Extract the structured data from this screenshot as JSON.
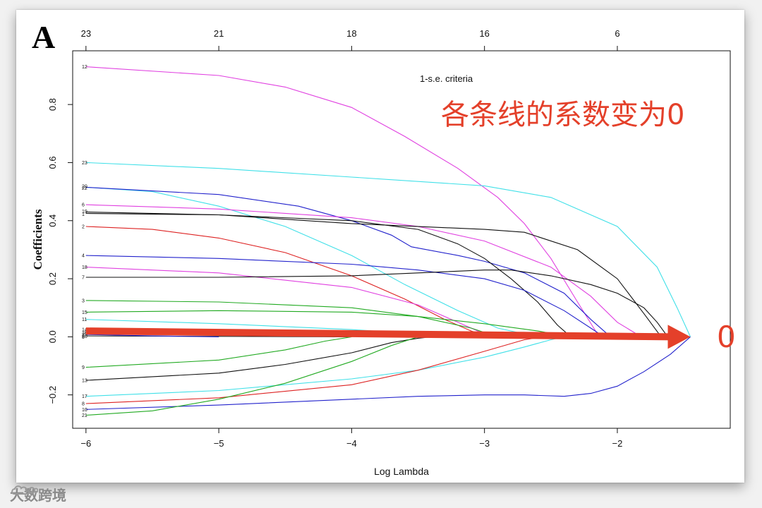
{
  "panel_label": "A",
  "annotation_text": "各条线的系数变为0",
  "arrow_end_label": "0",
  "criteria_label": "1-s.e. criteria",
  "watermark": {
    "text": "大数跨境",
    "icon": "cloud-logo-icon"
  },
  "chart_data": {
    "type": "line",
    "xlabel": "Log Lambda",
    "ylabel": "Coefficients",
    "xlim": [
      -6.1,
      -1.15
    ],
    "ylim": [
      -0.315,
      0.985
    ],
    "x_ticks": [
      -6,
      -5,
      -4,
      -3,
      -2
    ],
    "x_tick_labels": [
      "−6",
      "−5",
      "−4",
      "−3",
      "−2"
    ],
    "y_ticks": [
      -0.2,
      0.0,
      0.2,
      0.4,
      0.6,
      0.8
    ],
    "y_tick_labels": [
      "−0.2",
      "0.0",
      "0.2",
      "0.4",
      "0.6",
      "0.8"
    ],
    "top_axis": {
      "positions": [
        -6,
        -5,
        -4,
        -3,
        -2
      ],
      "labels": [
        "23",
        "21",
        "18",
        "16",
        "6"
      ]
    },
    "grid": false,
    "series": [
      {
        "name": "12",
        "color": "#e040e0",
        "x": [
          -6.0,
          -5.0,
          -4.5,
          -4.0,
          -3.6,
          -3.2,
          -2.9,
          -2.7,
          -2.5,
          -2.3,
          -2.15,
          -2.0
        ],
        "y": [
          0.93,
          0.9,
          0.86,
          0.79,
          0.69,
          0.58,
          0.48,
          0.39,
          0.27,
          0.12,
          0.01,
          0.0
        ]
      },
      {
        "name": "23",
        "color": "#40e0e8",
        "x": [
          -6.0,
          -5.0,
          -4.0,
          -3.0,
          -2.5,
          -2.0,
          -1.7,
          -1.55,
          -1.45
        ],
        "y": [
          0.6,
          0.58,
          0.55,
          0.52,
          0.48,
          0.38,
          0.24,
          0.1,
          0.0
        ]
      },
      {
        "name": "20",
        "color": "#40e0e8",
        "x": [
          -6.0,
          -5.5,
          -5.0,
          -4.5,
          -4.0,
          -3.6,
          -3.2,
          -2.9,
          -2.6
        ],
        "y": [
          0.515,
          0.5,
          0.45,
          0.38,
          0.28,
          0.18,
          0.09,
          0.03,
          0.0
        ]
      },
      {
        "name": "22",
        "color": "#2222cc",
        "x": [
          -6.0,
          -5.0,
          -4.4,
          -4.0,
          -3.7,
          -3.55,
          -3.2,
          -3.0,
          -2.7,
          -2.4,
          -2.2,
          -2.05
        ],
        "y": [
          0.515,
          0.49,
          0.45,
          0.4,
          0.35,
          0.31,
          0.28,
          0.26,
          0.22,
          0.15,
          0.06,
          0.0
        ]
      },
      {
        "name": "6",
        "color": "#e040e0",
        "x": [
          -6.0,
          -5.0,
          -4.0,
          -3.5,
          -3.0,
          -2.5,
          -2.2,
          -2.0,
          -1.82
        ],
        "y": [
          0.455,
          0.44,
          0.41,
          0.38,
          0.33,
          0.24,
          0.14,
          0.05,
          0.0
        ]
      },
      {
        "name": "19",
        "color": "#111111",
        "x": [
          -6.0,
          -5.0,
          -4.0,
          -3.5,
          -3.2,
          -3.0,
          -2.8,
          -2.6,
          -2.45,
          -2.35
        ],
        "y": [
          0.43,
          0.42,
          0.4,
          0.37,
          0.32,
          0.27,
          0.2,
          0.12,
          0.04,
          0.0
        ]
      },
      {
        "name": "1",
        "color": "#111111",
        "x": [
          -6.0,
          -5.0,
          -4.0,
          -3.0,
          -2.7,
          -2.3,
          -2.0,
          -1.8,
          -1.67
        ],
        "y": [
          0.425,
          0.42,
          0.39,
          0.37,
          0.36,
          0.3,
          0.2,
          0.08,
          0.0
        ]
      },
      {
        "name": "2",
        "color": "#dd2222",
        "x": [
          -6.0,
          -5.5,
          -5.0,
          -4.5,
          -4.0,
          -3.6,
          -3.3,
          -3.1,
          -2.95
        ],
        "y": [
          0.38,
          0.37,
          0.34,
          0.29,
          0.21,
          0.13,
          0.06,
          0.02,
          0.0
        ]
      },
      {
        "name": "4",
        "color": "#2222cc",
        "x": [
          -6.0,
          -5.0,
          -4.0,
          -3.5,
          -3.0,
          -2.7,
          -2.4,
          -2.2,
          -2.1
        ],
        "y": [
          0.28,
          0.27,
          0.25,
          0.23,
          0.2,
          0.16,
          0.09,
          0.03,
          0.0
        ]
      },
      {
        "name": "18",
        "color": "#e040e0",
        "x": [
          -6.0,
          -5.0,
          -4.0,
          -3.5,
          -3.2,
          -3.0,
          -2.9
        ],
        "y": [
          0.24,
          0.22,
          0.17,
          0.11,
          0.05,
          0.01,
          0.0
        ]
      },
      {
        "name": "7",
        "color": "#111111",
        "x": [
          -6.0,
          -5.0,
          -4.0,
          -3.5,
          -3.0,
          -2.8,
          -2.5,
          -2.2,
          -2.0,
          -1.8,
          -1.7,
          -1.62
        ],
        "y": [
          0.205,
          0.205,
          0.21,
          0.22,
          0.23,
          0.23,
          0.21,
          0.18,
          0.15,
          0.1,
          0.05,
          0.0
        ]
      },
      {
        "name": "3",
        "color": "#22aa22",
        "x": [
          -6.0,
          -5.0,
          -4.0,
          -3.5,
          -3.1,
          -2.9
        ],
        "y": [
          0.125,
          0.12,
          0.1,
          0.07,
          0.03,
          0.0
        ]
      },
      {
        "name": "15",
        "color": "#22aa22",
        "x": [
          -6.0,
          -5.0,
          -4.0,
          -3.5,
          -3.0,
          -2.6,
          -2.35
        ],
        "y": [
          0.085,
          0.09,
          0.085,
          0.07,
          0.045,
          0.02,
          0.0
        ]
      },
      {
        "name": "11",
        "color": "#40e0e8",
        "x": [
          -6.0,
          -5.0,
          -4.0,
          -3.5,
          -3.0
        ],
        "y": [
          0.06,
          0.045,
          0.025,
          0.01,
          0.0
        ]
      },
      {
        "name": "14",
        "color": "#111111",
        "x": [
          -6.0,
          -5.0,
          -4.0,
          -3.0
        ],
        "y": [
          0.025,
          0.02,
          0.01,
          0.0
        ]
      },
      {
        "name": "26",
        "color": "#111111",
        "x": [
          -6.0,
          -4.0
        ],
        "y": [
          0.003,
          0.0
        ]
      },
      {
        "name": "5",
        "color": "#2222cc",
        "x": [
          -6.0,
          -5.5,
          -5.0
        ],
        "y": [
          0.008,
          0.003,
          0.0
        ]
      },
      {
        "name": "9",
        "color": "#22aa22",
        "x": [
          -6.0,
          -5.0,
          -4.5,
          -4.2,
          -4.0
        ],
        "y": [
          -0.105,
          -0.08,
          -0.045,
          -0.015,
          0.0
        ]
      },
      {
        "name": "13",
        "color": "#111111",
        "x": [
          -6.0,
          -5.0,
          -4.5,
          -4.0,
          -3.7,
          -3.5,
          -3.4
        ],
        "y": [
          -0.15,
          -0.125,
          -0.095,
          -0.055,
          -0.02,
          -0.005,
          0.0
        ]
      },
      {
        "name": "17",
        "color": "#40e0e8",
        "x": [
          -6.0,
          -5.0,
          -4.0,
          -3.5,
          -3.0,
          -2.7,
          -2.5,
          -2.4
        ],
        "y": [
          -0.205,
          -0.185,
          -0.145,
          -0.115,
          -0.07,
          -0.035,
          -0.01,
          0.0
        ]
      },
      {
        "name": "8",
        "color": "#dd2222",
        "x": [
          -6.0,
          -5.0,
          -4.0,
          -3.5,
          -3.0,
          -2.7,
          -2.55
        ],
        "y": [
          -0.23,
          -0.21,
          -0.165,
          -0.115,
          -0.05,
          -0.01,
          0.0
        ]
      },
      {
        "name": "10",
        "color": "#2222cc",
        "x": [
          -6.0,
          -5.0,
          -4.0,
          -3.5,
          -3.0,
          -2.7,
          -2.4,
          -2.2,
          -2.0,
          -1.8,
          -1.6,
          -1.45
        ],
        "y": [
          -0.25,
          -0.235,
          -0.215,
          -0.205,
          -0.2,
          -0.2,
          -0.205,
          -0.195,
          -0.17,
          -0.12,
          -0.06,
          0.0
        ]
      },
      {
        "name": "21",
        "color": "#22aa22",
        "x": [
          -6.0,
          -5.5,
          -5.0,
          -4.5,
          -4.0,
          -3.7,
          -3.5
        ],
        "y": [
          -0.27,
          -0.255,
          -0.215,
          -0.16,
          -0.085,
          -0.03,
          0.0
        ]
      }
    ]
  },
  "label_positions": {
    "labels": [
      {
        "text": "12",
        "y": 0.93
      },
      {
        "text": "23",
        "y": 0.6
      },
      {
        "text": "20",
        "y": 0.518
      },
      {
        "text": "22",
        "y": 0.512
      },
      {
        "text": "6",
        "y": 0.455
      },
      {
        "text": "19",
        "y": 0.432
      },
      {
        "text": "1",
        "y": 0.423
      },
      {
        "text": "2",
        "y": 0.38
      },
      {
        "text": "4",
        "y": 0.28
      },
      {
        "text": "18",
        "y": 0.24
      },
      {
        "text": "7",
        "y": 0.205
      },
      {
        "text": "3",
        "y": 0.125
      },
      {
        "text": "15",
        "y": 0.085
      },
      {
        "text": "11",
        "y": 0.06
      },
      {
        "text": "14",
        "y": 0.025
      },
      {
        "text": "16",
        "y": 0.015
      },
      {
        "text": "25",
        "y": 0.008
      },
      {
        "text": "26",
        "y": 0.002
      },
      {
        "text": "5",
        "y": 0.0
      },
      {
        "text": "9",
        "y": -0.105
      },
      {
        "text": "13",
        "y": -0.15
      },
      {
        "text": "17",
        "y": -0.205
      },
      {
        "text": "8",
        "y": -0.23
      },
      {
        "text": "10",
        "y": -0.25
      },
      {
        "text": "21",
        "y": -0.27
      }
    ]
  },
  "arrow": {
    "from": [
      -6.0,
      0.02
    ],
    "to": [
      -1.45,
      0.0
    ],
    "color": "#e4402a"
  }
}
